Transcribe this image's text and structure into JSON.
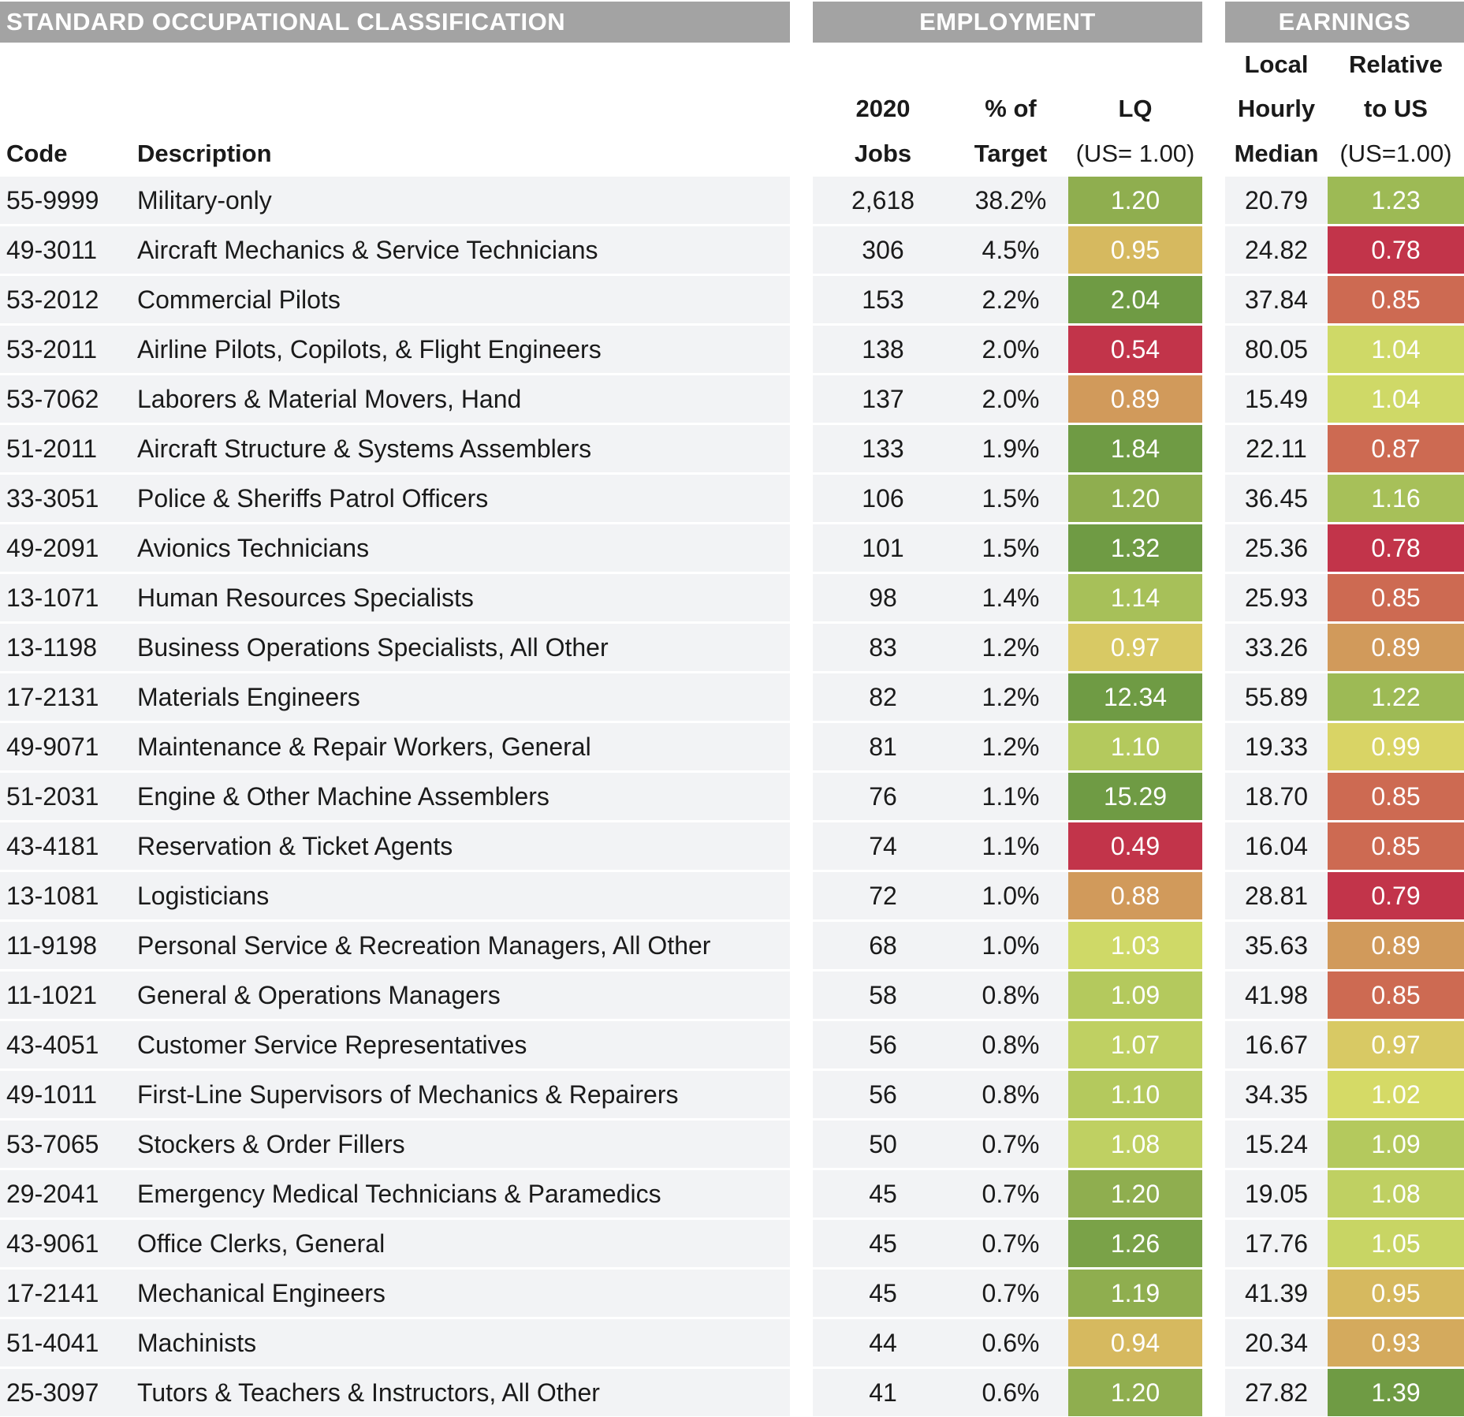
{
  "headers": {
    "group_soc": "STANDARD OCCUPATIONAL CLASSIFICATION",
    "group_employment": "EMPLOYMENT",
    "group_earnings": "EARNINGS",
    "code": "Code",
    "description": "Description",
    "jobs_line1": "2020",
    "jobs_line2": "Jobs",
    "pct_line1": "% of",
    "pct_line2": "Target",
    "lq_line1": "LQ",
    "lq_line2": "(US= 1.00)",
    "wage_line1": "Local",
    "wage_line2": "Hourly",
    "wage_line3": "Median",
    "rel_line1": "Relative",
    "rel_line2": "to US",
    "rel_line3": "(US=1.00)"
  },
  "rows": [
    {
      "code": "55-9999",
      "desc": "Military-only",
      "jobs": "2,618",
      "pct": "38.2%",
      "lq": "1.20",
      "lq_color": "#8fae4f",
      "wage": "20.79",
      "rel": "1.23",
      "rel_color": "#9dba55"
    },
    {
      "code": "49-3011",
      "desc": "Aircraft Mechanics & Service Technicians",
      "jobs": "306",
      "pct": "4.5%",
      "lq": "0.95",
      "lq_color": "#d6b95f",
      "wage": "24.82",
      "rel": "0.78",
      "rel_color": "#c2344a"
    },
    {
      "code": "53-2012",
      "desc": "Commercial Pilots",
      "jobs": "153",
      "pct": "2.2%",
      "lq": "2.04",
      "lq_color": "#6f9b44",
      "wage": "37.84",
      "rel": "0.85",
      "rel_color": "#cd6a52"
    },
    {
      "code": "53-2011",
      "desc": "Airline Pilots, Copilots, & Flight Engineers",
      "jobs": "138",
      "pct": "2.0%",
      "lq": "0.54",
      "lq_color": "#c2344a",
      "wage": "80.05",
      "rel": "1.04",
      "rel_color": "#cfd967"
    },
    {
      "code": "53-7062",
      "desc": "Laborers & Material Movers, Hand",
      "jobs": "137",
      "pct": "2.0%",
      "lq": "0.89",
      "lq_color": "#d19a5b",
      "wage": "15.49",
      "rel": "1.04",
      "rel_color": "#cfd967"
    },
    {
      "code": "51-2011",
      "desc": "Aircraft Structure & Systems Assemblers",
      "jobs": "133",
      "pct": "1.9%",
      "lq": "1.84",
      "lq_color": "#6f9b44",
      "wage": "22.11",
      "rel": "0.87",
      "rel_color": "#cd6a52"
    },
    {
      "code": "33-3051",
      "desc": "Police & Sheriffs Patrol Officers",
      "jobs": "106",
      "pct": "1.5%",
      "lq": "1.20",
      "lq_color": "#8fae4f",
      "wage": "36.45",
      "rel": "1.16",
      "rel_color": "#a7c059"
    },
    {
      "code": "49-2091",
      "desc": "Avionics Technicians",
      "jobs": "101",
      "pct": "1.5%",
      "lq": "1.32",
      "lq_color": "#6f9b44",
      "wage": "25.36",
      "rel": "0.78",
      "rel_color": "#c2344a"
    },
    {
      "code": "13-1071",
      "desc": "Human Resources Specialists",
      "jobs": "98",
      "pct": "1.4%",
      "lq": "1.14",
      "lq_color": "#a7c059",
      "wage": "25.93",
      "rel": "0.85",
      "rel_color": "#cd6a52"
    },
    {
      "code": "13-1198",
      "desc": "Business Operations Specialists, All Other",
      "jobs": "83",
      "pct": "1.2%",
      "lq": "0.97",
      "lq_color": "#d8c964",
      "wage": "33.26",
      "rel": "0.89",
      "rel_color": "#d19a5b"
    },
    {
      "code": "17-2131",
      "desc": "Materials Engineers",
      "jobs": "82",
      "pct": "1.2%",
      "lq": "12.34",
      "lq_color": "#6f9b44",
      "wage": "55.89",
      "rel": "1.22",
      "rel_color": "#9dba55"
    },
    {
      "code": "49-9071",
      "desc": "Maintenance & Repair Workers, General",
      "jobs": "81",
      "pct": "1.2%",
      "lq": "1.10",
      "lq_color": "#b4c95d",
      "wage": "19.33",
      "rel": "0.99",
      "rel_color": "#d9d465"
    },
    {
      "code": "51-2031",
      "desc": "Engine & Other Machine Assemblers",
      "jobs": "76",
      "pct": "1.1%",
      "lq": "15.29",
      "lq_color": "#6f9b44",
      "wage": "18.70",
      "rel": "0.85",
      "rel_color": "#cd6a52"
    },
    {
      "code": "43-4181",
      "desc": "Reservation & Ticket Agents",
      "jobs": "74",
      "pct": "1.1%",
      "lq": "0.49",
      "lq_color": "#c2344a",
      "wage": "16.04",
      "rel": "0.85",
      "rel_color": "#cd6a52"
    },
    {
      "code": "13-1081",
      "desc": "Logisticians",
      "jobs": "72",
      "pct": "1.0%",
      "lq": "0.88",
      "lq_color": "#d19a5b",
      "wage": "28.81",
      "rel": "0.79",
      "rel_color": "#c2344a"
    },
    {
      "code": "11-9198",
      "desc": "Personal Service & Recreation Managers, All Other",
      "jobs": "68",
      "pct": "1.0%",
      "lq": "1.03",
      "lq_color": "#cfd967",
      "wage": "35.63",
      "rel": "0.89",
      "rel_color": "#d19a5b"
    },
    {
      "code": "11-1021",
      "desc": "General & Operations Managers",
      "jobs": "58",
      "pct": "0.8%",
      "lq": "1.09",
      "lq_color": "#b4c95d",
      "wage": "41.98",
      "rel": "0.85",
      "rel_color": "#cd6a52"
    },
    {
      "code": "43-4051",
      "desc": "Customer Service Representatives",
      "jobs": "56",
      "pct": "0.8%",
      "lq": "1.07",
      "lq_color": "#bfd062",
      "wage": "16.67",
      "rel": "0.97",
      "rel_color": "#d8c964"
    },
    {
      "code": "49-1011",
      "desc": "First-Line Supervisors of Mechanics & Repairers",
      "jobs": "56",
      "pct": "0.8%",
      "lq": "1.10",
      "lq_color": "#b4c95d",
      "wage": "34.35",
      "rel": "1.02",
      "rel_color": "#d5da66"
    },
    {
      "code": "53-7065",
      "desc": "Stockers & Order Fillers",
      "jobs": "50",
      "pct": "0.7%",
      "lq": "1.08",
      "lq_color": "#bfd062",
      "wage": "15.24",
      "rel": "1.09",
      "rel_color": "#b4c95d"
    },
    {
      "code": "29-2041",
      "desc": "Emergency Medical Technicians & Paramedics",
      "jobs": "45",
      "pct": "0.7%",
      "lq": "1.20",
      "lq_color": "#8fae4f",
      "wage": "19.05",
      "rel": "1.08",
      "rel_color": "#bfd062"
    },
    {
      "code": "43-9061",
      "desc": "Office Clerks, General",
      "jobs": "45",
      "pct": "0.7%",
      "lq": "1.26",
      "lq_color": "#7aa248",
      "wage": "17.76",
      "rel": "1.05",
      "rel_color": "#c8d564"
    },
    {
      "code": "17-2141",
      "desc": "Mechanical Engineers",
      "jobs": "45",
      "pct": "0.7%",
      "lq": "1.19",
      "lq_color": "#8fae4f",
      "wage": "41.39",
      "rel": "0.95",
      "rel_color": "#d6b95f"
    },
    {
      "code": "51-4041",
      "desc": "Machinists",
      "jobs": "44",
      "pct": "0.6%",
      "lq": "0.94",
      "lq_color": "#d6b95f",
      "wage": "20.34",
      "rel": "0.93",
      "rel_color": "#d4aa5d"
    },
    {
      "code": "25-3097",
      "desc": "Tutors & Teachers & Instructors, All Other",
      "jobs": "41",
      "pct": "0.6%",
      "lq": "1.20",
      "lq_color": "#8fae4f",
      "wage": "27.82",
      "rel": "1.39",
      "rel_color": "#6f9b44"
    }
  ]
}
